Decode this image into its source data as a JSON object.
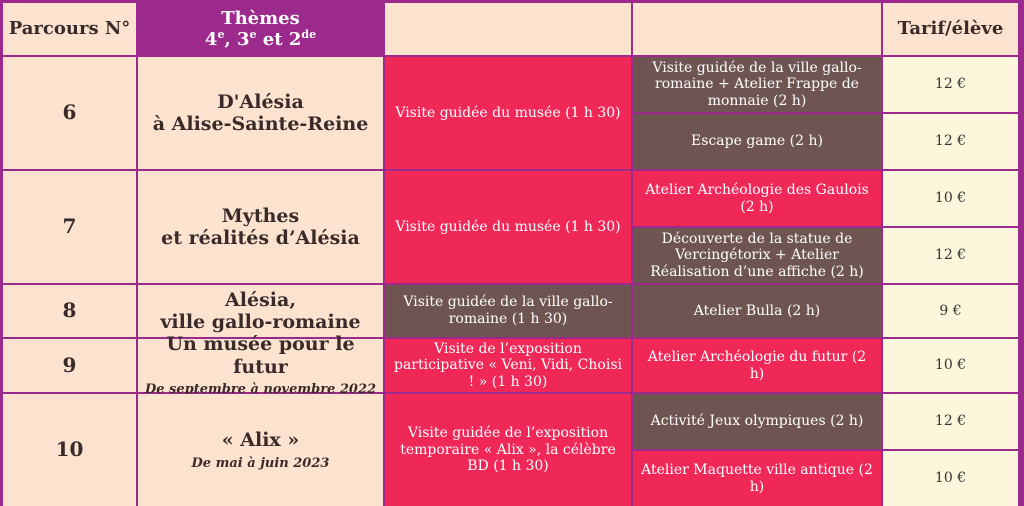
{
  "headers": {
    "parcours": "Parcours N°",
    "themes_title": "Thèmes",
    "themes_g1": "4",
    "themes_g1_sup": "e",
    "themes_sep1": ", ",
    "themes_g2": "3",
    "themes_g2_sup": "e",
    "themes_sep2": " et ",
    "themes_g3": "2",
    "themes_g3_sup": "de",
    "col3": "",
    "col4": "",
    "tarif": "Tarif/élève"
  },
  "rows": [
    {
      "num": "6",
      "theme_line1": "D'Alésia",
      "theme_line2": "à Alise-Sainte-Reine",
      "visit": "Visite guidée du musée (1 h 30)",
      "activities": [
        {
          "text": "Visite guidée de la ville gallo-romaine + Atelier Frappe de monnaie (2 h)",
          "price": "12 €"
        },
        {
          "text": "Escape game (2 h)",
          "price": "12 €"
        }
      ]
    },
    {
      "num": "7",
      "theme_line1": "Mythes",
      "theme_line2": "et réalités d’Alésia",
      "visit": "Visite guidée du musée (1 h 30)",
      "activities": [
        {
          "text": "Atelier Archéologie des Gaulois (2 h)",
          "price": "10 €"
        },
        {
          "text": "Découverte de la statue de Vercingétorix + Atelier Réalisation d’une affiche (2 h)",
          "price": "12 €"
        }
      ]
    },
    {
      "num": "8",
      "theme_line1": "Alésia,",
      "theme_line2": "ville gallo-romaine",
      "visit": "Visite guidée de la ville gallo-romaine (1 h 30)",
      "activities": [
        {
          "text": "Atelier Bulla (2 h)",
          "price": "9 €"
        }
      ]
    },
    {
      "num": "9",
      "theme_line1": "Un musée pour le futur",
      "dates": "De septembre à novembre 2022",
      "visit": "Visite de l’exposition participative « Veni, Vidi, Choisi ! » (1 h 30)",
      "activities": [
        {
          "text": "Atelier Archéologie du futur (2 h)",
          "price": "10 €"
        }
      ]
    },
    {
      "num": "10",
      "theme_line1": "« Alix »",
      "dates": "De mai à juin 2023",
      "visit": "Visite guidée de l’exposition temporaire « Alix », la célèbre BD (1 h 30)",
      "activities": [
        {
          "text": "Activité Jeux olympiques (2 h)",
          "price": "12 €"
        },
        {
          "text": "Atelier Maquette ville antique (2 h)",
          "price": "10 €"
        }
      ]
    }
  ],
  "colors": {
    "border": "#9c2a8c",
    "light": "#fbe3cf",
    "red": "#f02858",
    "brown": "#6e5552",
    "price": "#fbf6dc"
  }
}
